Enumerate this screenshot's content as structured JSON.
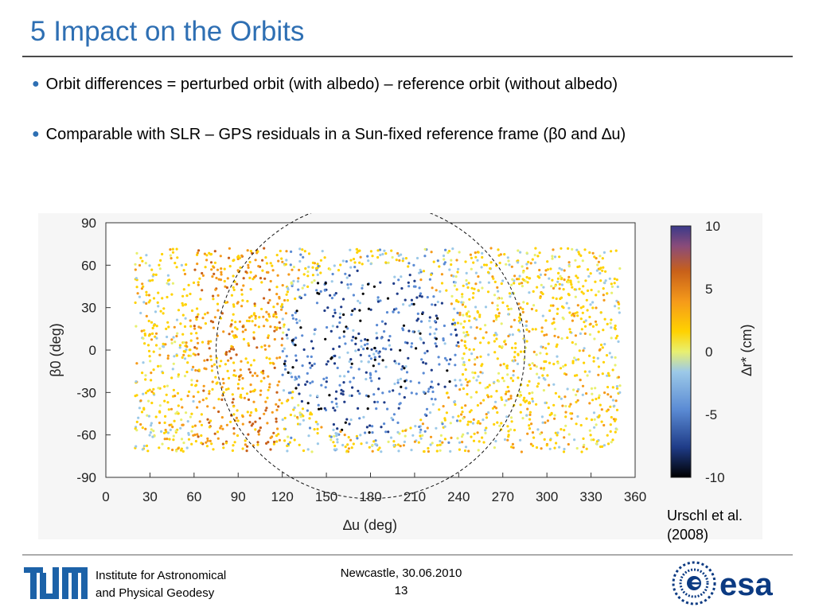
{
  "slide": {
    "title": "5 Impact on the Orbits",
    "bullets": [
      "Orbit differences = perturbed orbit (with albedo) – reference orbit (without albedo)",
      "Comparable with SLR – GPS residuals in a Sun-fixed reference frame (β0 and ∆u)"
    ],
    "citation_line1": "Urschl et al.",
    "citation_line2": "(2008)"
  },
  "footer": {
    "institute_line1": "Institute for Astronomical",
    "institute_line2": "and Physical Geodesy",
    "event": "Newcastle, 30.06.2010",
    "page": "13",
    "left_logo": "TUM",
    "right_logo": "esa"
  },
  "chart_data": {
    "type": "scatter",
    "title": "",
    "xlabel": "∆u (deg)",
    "ylabel": "β0 (deg)",
    "xlim": [
      0,
      360
    ],
    "ylim": [
      -90,
      90
    ],
    "x_ticks": [
      "0",
      "30",
      "60",
      "90",
      "120",
      "150",
      "180",
      "210",
      "240",
      "270",
      "300",
      "330",
      "360"
    ],
    "y_ticks": [
      "90",
      "60",
      "30",
      "0",
      "-30",
      "-60",
      "-90"
    ],
    "colorbar": {
      "label": "∆r* (cm)",
      "range": [
        -10,
        10
      ],
      "ticks": [
        "10",
        "5",
        "0",
        "-5",
        "-10"
      ],
      "colors": [
        "#000000",
        "#1f3c88",
        "#5b8bd4",
        "#9cc9e8",
        "#e8f070",
        "#ffd200",
        "#f59a1a",
        "#c8601a",
        "#8a4b7a",
        "#3a3a8a"
      ]
    },
    "annotation": "dashed circle centered at ∆u=180, β0=0",
    "region_summary": [
      {
        "x_range": [
          120,
          240
        ],
        "y_range": [
          -60,
          60
        ],
        "value_cm": -5
      },
      {
        "x_range": [
          60,
          120
        ],
        "y_range": [
          -70,
          70
        ],
        "value_cm": 4
      },
      {
        "x_range": [
          240,
          300
        ],
        "y_range": [
          -70,
          70
        ],
        "value_cm": 2
      },
      {
        "x_range": [
          300,
          360
        ],
        "y_range": [
          -70,
          70
        ],
        "value_cm": 1
      }
    ]
  }
}
